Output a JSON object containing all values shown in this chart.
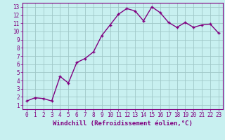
{
  "x": [
    0,
    1,
    2,
    3,
    4,
    5,
    6,
    7,
    8,
    9,
    10,
    11,
    12,
    13,
    14,
    15,
    16,
    17,
    18,
    19,
    20,
    21,
    22,
    23
  ],
  "y": [
    1.5,
    1.9,
    1.8,
    1.5,
    4.5,
    3.7,
    6.2,
    6.7,
    7.5,
    9.5,
    10.8,
    12.1,
    12.8,
    12.5,
    11.3,
    13.0,
    12.3,
    11.1,
    10.5,
    11.1,
    10.5,
    10.8,
    10.9,
    9.8
  ],
  "line_color": "#800080",
  "marker": "+",
  "marker_color": "#800080",
  "bg_color": "#c8f0f0",
  "grid_color": "#a0c8c8",
  "xlabel": "Windchill (Refroidissement éolien,°C)",
  "xlim": [
    -0.5,
    23.5
  ],
  "ylim": [
    0.5,
    13.5
  ],
  "yticks": [
    1,
    2,
    3,
    4,
    5,
    6,
    7,
    8,
    9,
    10,
    11,
    12,
    13
  ],
  "xticks": [
    0,
    1,
    2,
    3,
    4,
    5,
    6,
    7,
    8,
    9,
    10,
    11,
    12,
    13,
    14,
    15,
    16,
    17,
    18,
    19,
    20,
    21,
    22,
    23
  ],
  "tick_label_color": "#800080",
  "axis_label_color": "#800080",
  "tick_fontsize": 5.5,
  "label_fontsize": 6.5,
  "linewidth": 1.0,
  "markersize": 3.5
}
